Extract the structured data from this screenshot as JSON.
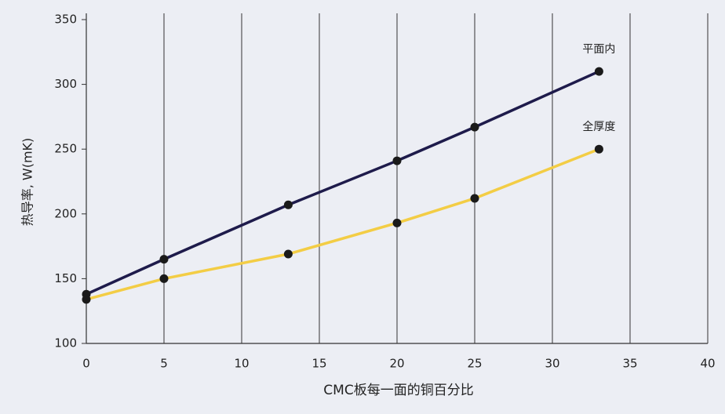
{
  "chart_data": {
    "type": "line",
    "x_label": "CMC板每一面的铜百分比",
    "y_label": "热导率, W(mK)",
    "x": [
      0,
      5,
      13,
      20,
      25,
      33
    ],
    "series": [
      {
        "name": "平面内",
        "color": "#1e1b4b",
        "values": [
          138,
          165,
          207,
          241,
          267,
          310
        ]
      },
      {
        "name": "全厚度",
        "color": "#f3cd45",
        "values": [
          134,
          150,
          169,
          193,
          212,
          250
        ]
      }
    ],
    "xlim": [
      0,
      40
    ],
    "xticks": [
      0,
      5,
      10,
      15,
      20,
      25,
      30,
      35,
      40
    ],
    "ylim": [
      100,
      350
    ],
    "yticks": [
      100,
      150,
      200,
      250,
      300,
      350
    ],
    "grid": "vertical",
    "point_color": "#1a1a1a"
  }
}
